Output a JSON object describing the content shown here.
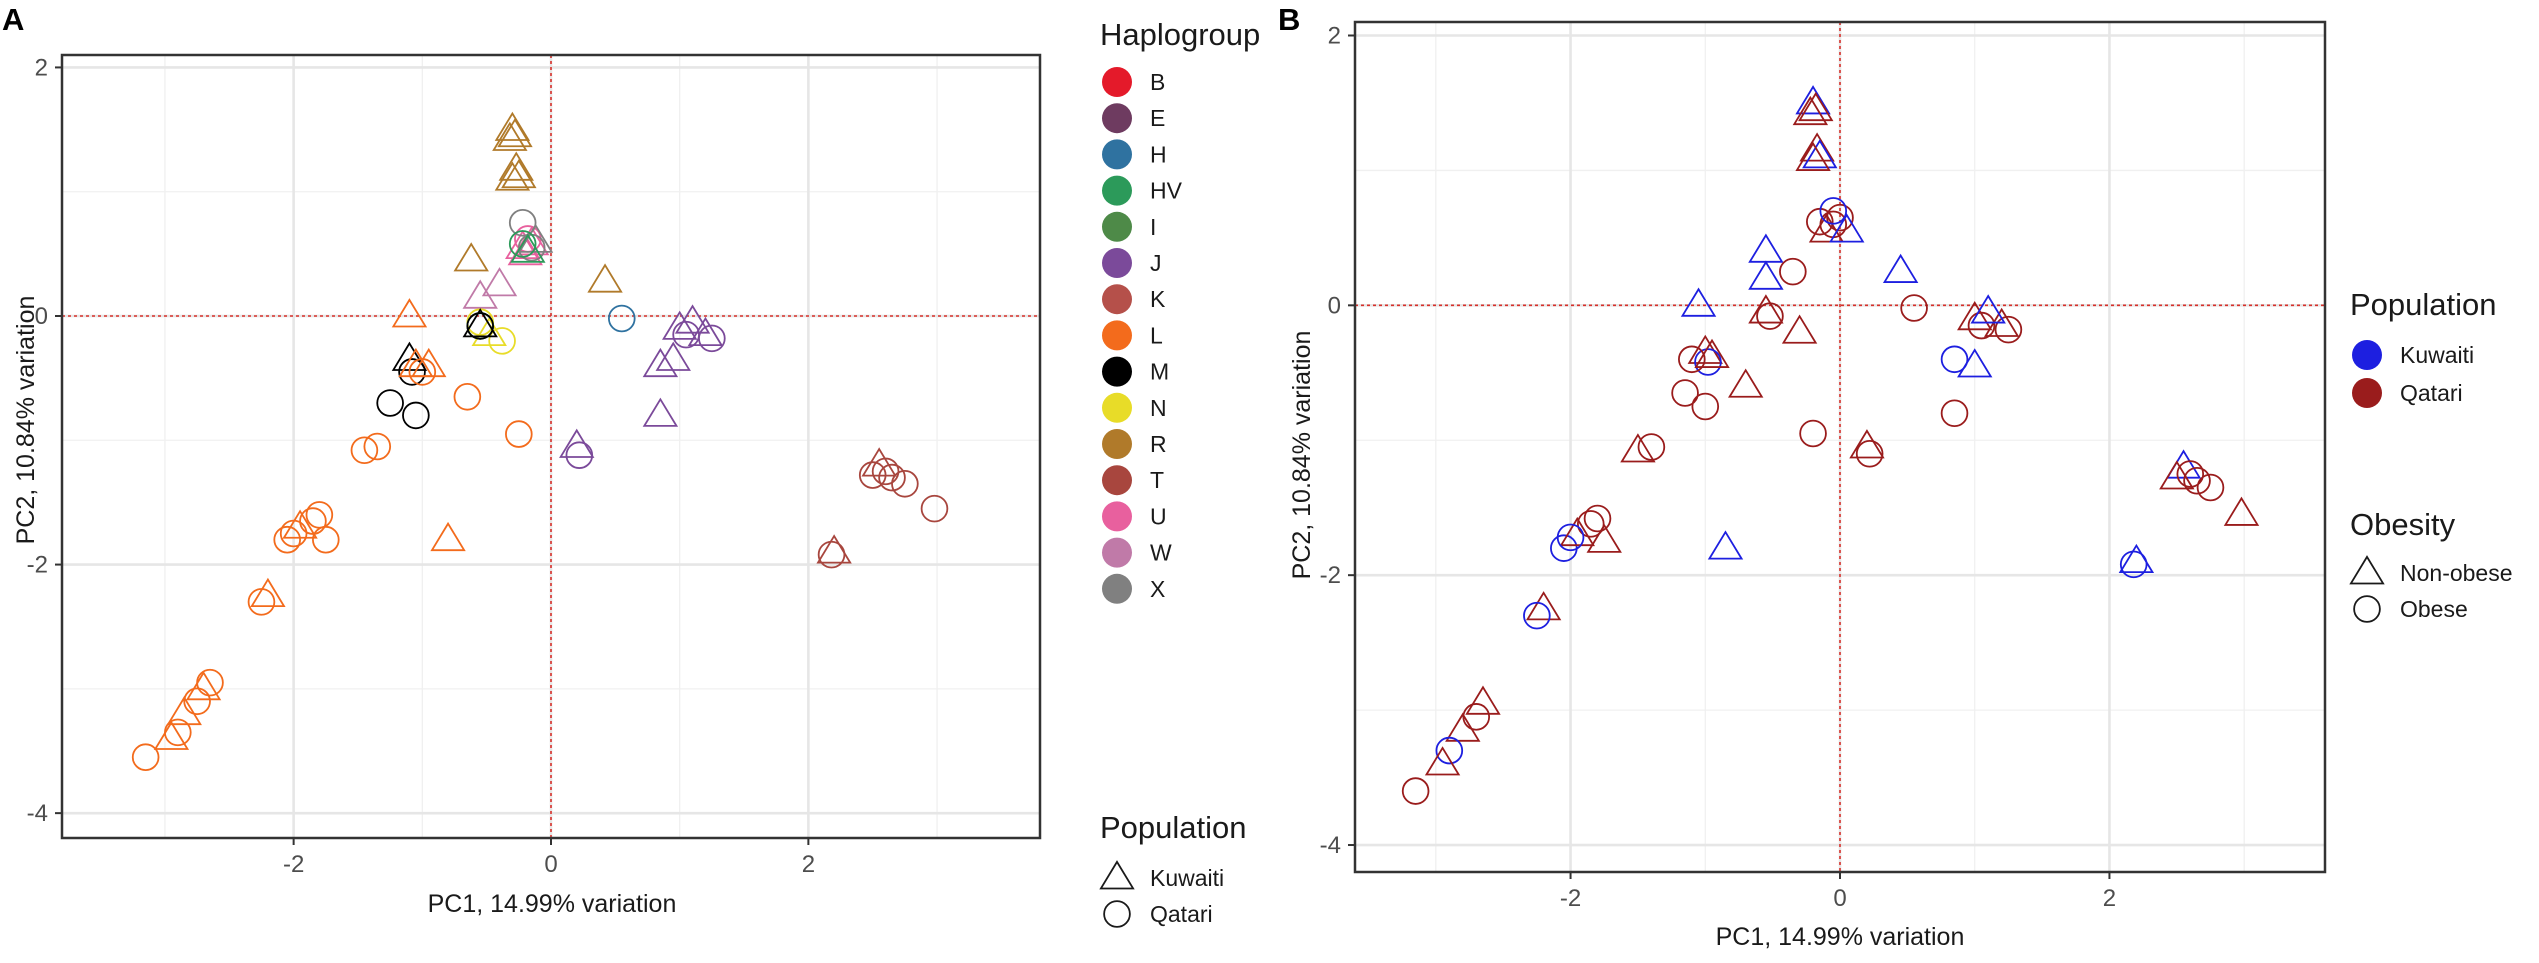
{
  "panels": {
    "A": {
      "label": "A"
    },
    "B": {
      "label": "B"
    }
  },
  "colors": {
    "haplogroups": {
      "B": "#e41a2a",
      "E": "#6e3b60",
      "H": "#2f72a0",
      "HV": "#2c9a5a",
      "I": "#4e8a48",
      "J": "#7b4a9a",
      "K": "#b5504a",
      "L": "#f36b1c",
      "M": "#000000",
      "N": "#e8dc28",
      "R": "#b07a2a",
      "T": "#a8463e",
      "U": "#e8609e",
      "W": "#c07aa8",
      "X": "#808080"
    },
    "population": {
      "Kuwaiti": "#1d1fe0",
      "Qatari": "#9a1c1c"
    },
    "reference_line": "#d7302a"
  },
  "chart_data": [
    {
      "panel": "A",
      "type": "scatter",
      "title": "",
      "xlabel": "PC1, 14.99% variation",
      "ylabel": "PC2, 10.84% variation",
      "xlim": [
        -3.8,
        3.8
      ],
      "ylim": [
        -4.2,
        2.1
      ],
      "xticks": [
        -2,
        0,
        2
      ],
      "xtick_labels": [
        "-2",
        "0",
        "2"
      ],
      "yticks": [
        -4,
        -2,
        0,
        2
      ],
      "ytick_labels": [
        "-4",
        "-2",
        "0",
        "2"
      ],
      "reference_lines": {
        "x": 0,
        "y": 0
      },
      "color_by": "haplogroup",
      "shape_by": "population",
      "legends": [
        {
          "title": "Haplogroup",
          "items": [
            "B",
            "E",
            "H",
            "HV",
            "I",
            "J",
            "K",
            "L",
            "M",
            "N",
            "R",
            "T",
            "U",
            "W",
            "X"
          ]
        },
        {
          "title": "Population",
          "items": [
            {
              "label": "Kuwaiti",
              "shape": "triangle"
            },
            {
              "label": "Qatari",
              "shape": "circle"
            }
          ]
        }
      ],
      "points": [
        {
          "x": -0.3,
          "y": 1.5,
          "g": "R",
          "s": "triangle"
        },
        {
          "x": -0.28,
          "y": 1.45,
          "g": "R",
          "s": "triangle"
        },
        {
          "x": -0.32,
          "y": 1.42,
          "g": "R",
          "s": "triangle"
        },
        {
          "x": -0.27,
          "y": 1.18,
          "g": "R",
          "s": "triangle"
        },
        {
          "x": -0.25,
          "y": 1.12,
          "g": "R",
          "s": "triangle"
        },
        {
          "x": -0.3,
          "y": 1.1,
          "g": "R",
          "s": "triangle"
        },
        {
          "x": -0.62,
          "y": 0.45,
          "g": "R",
          "s": "triangle"
        },
        {
          "x": 0.42,
          "y": 0.28,
          "g": "R",
          "s": "triangle"
        },
        {
          "x": -0.22,
          "y": 0.55,
          "g": "U",
          "s": "triangle"
        },
        {
          "x": -0.18,
          "y": 0.62,
          "g": "U",
          "s": "circle"
        },
        {
          "x": -0.15,
          "y": 0.58,
          "g": "U",
          "s": "triangle"
        },
        {
          "x": -0.2,
          "y": 0.5,
          "g": "U",
          "s": "triangle"
        },
        {
          "x": -0.12,
          "y": 0.6,
          "g": "X",
          "s": "triangle"
        },
        {
          "x": -0.15,
          "y": 0.55,
          "g": "X",
          "s": "circle"
        },
        {
          "x": -0.22,
          "y": 0.75,
          "g": "X",
          "s": "circle"
        },
        {
          "x": -0.18,
          "y": 0.52,
          "g": "HV",
          "s": "triangle"
        },
        {
          "x": -0.22,
          "y": 0.58,
          "g": "HV",
          "s": "circle"
        },
        {
          "x": -0.4,
          "y": 0.25,
          "g": "W",
          "s": "triangle"
        },
        {
          "x": -0.55,
          "y": 0.15,
          "g": "W",
          "s": "triangle"
        },
        {
          "x": 0.55,
          "y": -0.02,
          "g": "H",
          "s": "circle"
        },
        {
          "x": -0.48,
          "y": -0.15,
          "g": "N",
          "s": "triangle"
        },
        {
          "x": -0.38,
          "y": -0.2,
          "g": "N",
          "s": "circle"
        },
        {
          "x": -0.55,
          "y": -0.05,
          "g": "N",
          "s": "circle"
        },
        {
          "x": -0.55,
          "y": -0.08,
          "g": "HV",
          "s": "circle"
        },
        {
          "x": -0.55,
          "y": -0.08,
          "g": "M",
          "s": "triangle"
        },
        {
          "x": -0.55,
          "y": -0.08,
          "g": "M",
          "s": "circle"
        },
        {
          "x": -1.1,
          "y": -0.35,
          "g": "M",
          "s": "triangle"
        },
        {
          "x": -1.08,
          "y": -0.45,
          "g": "M",
          "s": "circle"
        },
        {
          "x": -1.25,
          "y": -0.7,
          "g": "M",
          "s": "circle"
        },
        {
          "x": -1.05,
          "y": -0.8,
          "g": "M",
          "s": "circle"
        },
        {
          "x": -1.1,
          "y": 0.0,
          "g": "L",
          "s": "triangle"
        },
        {
          "x": -1.05,
          "y": -0.4,
          "g": "L",
          "s": "triangle"
        },
        {
          "x": -1.0,
          "y": -0.45,
          "g": "L",
          "s": "circle"
        },
        {
          "x": -0.95,
          "y": -0.4,
          "g": "L",
          "s": "triangle"
        },
        {
          "x": -0.65,
          "y": -0.65,
          "g": "L",
          "s": "circle"
        },
        {
          "x": -0.25,
          "y": -0.95,
          "g": "L",
          "s": "circle"
        },
        {
          "x": -1.45,
          "y": -1.08,
          "g": "L",
          "s": "circle"
        },
        {
          "x": -1.35,
          "y": -1.05,
          "g": "L",
          "s": "circle"
        },
        {
          "x": -0.8,
          "y": -1.8,
          "g": "L",
          "s": "triangle"
        },
        {
          "x": -2.05,
          "y": -1.8,
          "g": "L",
          "s": "circle"
        },
        {
          "x": -1.95,
          "y": -1.7,
          "g": "L",
          "s": "triangle"
        },
        {
          "x": -1.85,
          "y": -1.65,
          "g": "L",
          "s": "circle"
        },
        {
          "x": -1.8,
          "y": -1.6,
          "g": "L",
          "s": "circle"
        },
        {
          "x": -1.75,
          "y": -1.8,
          "g": "L",
          "s": "circle"
        },
        {
          "x": -2.0,
          "y": -1.75,
          "g": "L",
          "s": "circle"
        },
        {
          "x": -2.2,
          "y": -2.25,
          "g": "L",
          "s": "triangle"
        },
        {
          "x": -2.25,
          "y": -2.3,
          "g": "L",
          "s": "circle"
        },
        {
          "x": -2.7,
          "y": -3.0,
          "g": "L",
          "s": "triangle"
        },
        {
          "x": -2.65,
          "y": -2.95,
          "g": "L",
          "s": "circle"
        },
        {
          "x": -2.75,
          "y": -3.1,
          "g": "L",
          "s": "circle"
        },
        {
          "x": -2.85,
          "y": -3.2,
          "g": "L",
          "s": "triangle"
        },
        {
          "x": -2.9,
          "y": -3.35,
          "g": "L",
          "s": "circle"
        },
        {
          "x": -2.95,
          "y": -3.4,
          "g": "L",
          "s": "triangle"
        },
        {
          "x": -3.15,
          "y": -3.55,
          "g": "L",
          "s": "circle"
        },
        {
          "x": 1.0,
          "y": -0.1,
          "g": "J",
          "s": "triangle"
        },
        {
          "x": 1.05,
          "y": -0.15,
          "g": "J",
          "s": "circle"
        },
        {
          "x": 1.2,
          "y": -0.15,
          "g": "J",
          "s": "triangle"
        },
        {
          "x": 1.25,
          "y": -0.18,
          "g": "J",
          "s": "circle"
        },
        {
          "x": 1.1,
          "y": -0.05,
          "g": "J",
          "s": "triangle"
        },
        {
          "x": 0.85,
          "y": -0.4,
          "g": "J",
          "s": "triangle"
        },
        {
          "x": 0.95,
          "y": -0.35,
          "g": "J",
          "s": "triangle"
        },
        {
          "x": 0.85,
          "y": -0.8,
          "g": "J",
          "s": "triangle"
        },
        {
          "x": 0.2,
          "y": -1.05,
          "g": "J",
          "s": "triangle"
        },
        {
          "x": 0.22,
          "y": -1.12,
          "g": "J",
          "s": "circle"
        },
        {
          "x": 2.55,
          "y": -1.2,
          "g": "T",
          "s": "triangle"
        },
        {
          "x": 2.6,
          "y": -1.25,
          "g": "T",
          "s": "circle"
        },
        {
          "x": 2.5,
          "y": -1.28,
          "g": "T",
          "s": "circle"
        },
        {
          "x": 2.65,
          "y": -1.3,
          "g": "T",
          "s": "circle"
        },
        {
          "x": 2.75,
          "y": -1.35,
          "g": "T",
          "s": "circle"
        },
        {
          "x": 2.2,
          "y": -1.9,
          "g": "T",
          "s": "triangle"
        },
        {
          "x": 2.18,
          "y": -1.92,
          "g": "T",
          "s": "circle"
        },
        {
          "x": 2.98,
          "y": -1.55,
          "g": "T",
          "s": "circle"
        }
      ]
    },
    {
      "panel": "B",
      "type": "scatter",
      "title": "",
      "xlabel": "PC1, 14.99% variation",
      "ylabel": "PC2, 10.84% variation",
      "xlim": [
        -3.6,
        3.6
      ],
      "ylim": [
        -4.2,
        2.1
      ],
      "xticks": [
        -2,
        0,
        2
      ],
      "xtick_labels": [
        "-2",
        "0",
        "2"
      ],
      "yticks": [
        -4,
        -2,
        0,
        2
      ],
      "ytick_labels": [
        "-4",
        "-2",
        "0",
        "2"
      ],
      "reference_lines": {
        "x": 0,
        "y": 0
      },
      "color_by": "population",
      "shape_by": "obesity",
      "legends": [
        {
          "title": "Population",
          "items": [
            "Kuwaiti",
            "Qatari"
          ]
        },
        {
          "title": "Obesity",
          "items": [
            {
              "label": "Non-obese",
              "shape": "triangle"
            },
            {
              "label": "Obese",
              "shape": "circle"
            }
          ]
        }
      ],
      "points": [
        {
          "x": -0.2,
          "y": 1.5,
          "p": "Kuwaiti",
          "s": "triangle"
        },
        {
          "x": -0.18,
          "y": 1.45,
          "p": "Qatari",
          "s": "triangle"
        },
        {
          "x": -0.22,
          "y": 1.42,
          "p": "Qatari",
          "s": "triangle"
        },
        {
          "x": -0.17,
          "y": 1.15,
          "p": "Qatari",
          "s": "triangle"
        },
        {
          "x": -0.15,
          "y": 1.1,
          "p": "Kuwaiti",
          "s": "triangle"
        },
        {
          "x": -0.2,
          "y": 1.08,
          "p": "Qatari",
          "s": "triangle"
        },
        {
          "x": -0.05,
          "y": 0.6,
          "p": "Qatari",
          "s": "circle"
        },
        {
          "x": -0.1,
          "y": 0.55,
          "p": "Qatari",
          "s": "triangle"
        },
        {
          "x": 0.0,
          "y": 0.65,
          "p": "Qatari",
          "s": "circle"
        },
        {
          "x": -0.15,
          "y": 0.62,
          "p": "Qatari",
          "s": "circle"
        },
        {
          "x": 0.05,
          "y": 0.55,
          "p": "Kuwaiti",
          "s": "triangle"
        },
        {
          "x": -0.05,
          "y": 0.7,
          "p": "Kuwaiti",
          "s": "circle"
        },
        {
          "x": -0.55,
          "y": 0.4,
          "p": "Kuwaiti",
          "s": "triangle"
        },
        {
          "x": -0.35,
          "y": 0.25,
          "p": "Qatari",
          "s": "circle"
        },
        {
          "x": 0.45,
          "y": 0.25,
          "p": "Kuwaiti",
          "s": "triangle"
        },
        {
          "x": -0.55,
          "y": 0.2,
          "p": "Kuwaiti",
          "s": "triangle"
        },
        {
          "x": -0.3,
          "y": -0.2,
          "p": "Qatari",
          "s": "triangle"
        },
        {
          "x": -0.55,
          "y": -0.05,
          "p": "Qatari",
          "s": "triangle"
        },
        {
          "x": -0.52,
          "y": -0.08,
          "p": "Qatari",
          "s": "circle"
        },
        {
          "x": -1.05,
          "y": 0.0,
          "p": "Kuwaiti",
          "s": "triangle"
        },
        {
          "x": -1.0,
          "y": -0.35,
          "p": "Qatari",
          "s": "triangle"
        },
        {
          "x": -0.98,
          "y": -0.42,
          "p": "Kuwaiti",
          "s": "circle"
        },
        {
          "x": -0.95,
          "y": -0.38,
          "p": "Qatari",
          "s": "triangle"
        },
        {
          "x": -1.1,
          "y": -0.4,
          "p": "Qatari",
          "s": "circle"
        },
        {
          "x": -1.15,
          "y": -0.65,
          "p": "Qatari",
          "s": "circle"
        },
        {
          "x": -1.0,
          "y": -0.75,
          "p": "Qatari",
          "s": "circle"
        },
        {
          "x": -0.7,
          "y": -0.6,
          "p": "Qatari",
          "s": "triangle"
        },
        {
          "x": -0.2,
          "y": -0.95,
          "p": "Qatari",
          "s": "circle"
        },
        {
          "x": 0.55,
          "y": -0.02,
          "p": "Qatari",
          "s": "circle"
        },
        {
          "x": 1.0,
          "y": -0.1,
          "p": "Qatari",
          "s": "triangle"
        },
        {
          "x": 1.05,
          "y": -0.15,
          "p": "Qatari",
          "s": "circle"
        },
        {
          "x": 1.2,
          "y": -0.15,
          "p": "Qatari",
          "s": "triangle"
        },
        {
          "x": 1.25,
          "y": -0.18,
          "p": "Qatari",
          "s": "circle"
        },
        {
          "x": 1.1,
          "y": -0.05,
          "p": "Kuwaiti",
          "s": "triangle"
        },
        {
          "x": 0.85,
          "y": -0.4,
          "p": "Kuwaiti",
          "s": "circle"
        },
        {
          "x": 1.0,
          "y": -0.45,
          "p": "Kuwaiti",
          "s": "triangle"
        },
        {
          "x": 0.85,
          "y": -0.8,
          "p": "Qatari",
          "s": "circle"
        },
        {
          "x": 0.2,
          "y": -1.05,
          "p": "Qatari",
          "s": "triangle"
        },
        {
          "x": 0.22,
          "y": -1.1,
          "p": "Qatari",
          "s": "circle"
        },
        {
          "x": -1.5,
          "y": -1.08,
          "p": "Qatari",
          "s": "triangle"
        },
        {
          "x": -1.4,
          "y": -1.05,
          "p": "Qatari",
          "s": "circle"
        },
        {
          "x": -0.85,
          "y": -1.8,
          "p": "Kuwaiti",
          "s": "triangle"
        },
        {
          "x": -2.05,
          "y": -1.8,
          "p": "Kuwaiti",
          "s": "circle"
        },
        {
          "x": -1.95,
          "y": -1.7,
          "p": "Qatari",
          "s": "triangle"
        },
        {
          "x": -1.85,
          "y": -1.62,
          "p": "Qatari",
          "s": "circle"
        },
        {
          "x": -1.8,
          "y": -1.58,
          "p": "Qatari",
          "s": "circle"
        },
        {
          "x": -1.75,
          "y": -1.75,
          "p": "Qatari",
          "s": "triangle"
        },
        {
          "x": -2.0,
          "y": -1.72,
          "p": "Kuwaiti",
          "s": "circle"
        },
        {
          "x": -2.2,
          "y": -2.25,
          "p": "Qatari",
          "s": "triangle"
        },
        {
          "x": -2.25,
          "y": -2.3,
          "p": "Kuwaiti",
          "s": "circle"
        },
        {
          "x": -2.65,
          "y": -2.95,
          "p": "Qatari",
          "s": "triangle"
        },
        {
          "x": -2.7,
          "y": -3.05,
          "p": "Qatari",
          "s": "circle"
        },
        {
          "x": -2.8,
          "y": -3.15,
          "p": "Qatari",
          "s": "triangle"
        },
        {
          "x": -2.9,
          "y": -3.3,
          "p": "Kuwaiti",
          "s": "circle"
        },
        {
          "x": -2.95,
          "y": -3.4,
          "p": "Qatari",
          "s": "triangle"
        },
        {
          "x": -3.15,
          "y": -3.6,
          "p": "Qatari",
          "s": "circle"
        },
        {
          "x": 2.55,
          "y": -1.2,
          "p": "Kuwaiti",
          "s": "triangle"
        },
        {
          "x": 2.6,
          "y": -1.25,
          "p": "Qatari",
          "s": "circle"
        },
        {
          "x": 2.5,
          "y": -1.28,
          "p": "Qatari",
          "s": "triangle"
        },
        {
          "x": 2.65,
          "y": -1.3,
          "p": "Qatari",
          "s": "circle"
        },
        {
          "x": 2.75,
          "y": -1.35,
          "p": "Qatari",
          "s": "circle"
        },
        {
          "x": 2.2,
          "y": -1.9,
          "p": "Kuwaiti",
          "s": "triangle"
        },
        {
          "x": 2.18,
          "y": -1.92,
          "p": "Kuwaiti",
          "s": "circle"
        },
        {
          "x": 2.98,
          "y": -1.55,
          "p": "Qatari",
          "s": "triangle"
        }
      ]
    }
  ]
}
